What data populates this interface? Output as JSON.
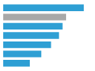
{
  "chart_data": {
    "type": "bar",
    "orientation": "horizontal",
    "values": [
      91,
      71,
      67,
      63,
      54,
      43,
      30
    ],
    "colors": [
      "#2e9fd4",
      "#a8a8a8",
      "#2e9fd4",
      "#2e9fd4",
      "#2e9fd4",
      "#2e9fd4",
      "#2e9fd4"
    ],
    "xlim": [
      0,
      100
    ],
    "grid": false,
    "tick_labels": false
  }
}
